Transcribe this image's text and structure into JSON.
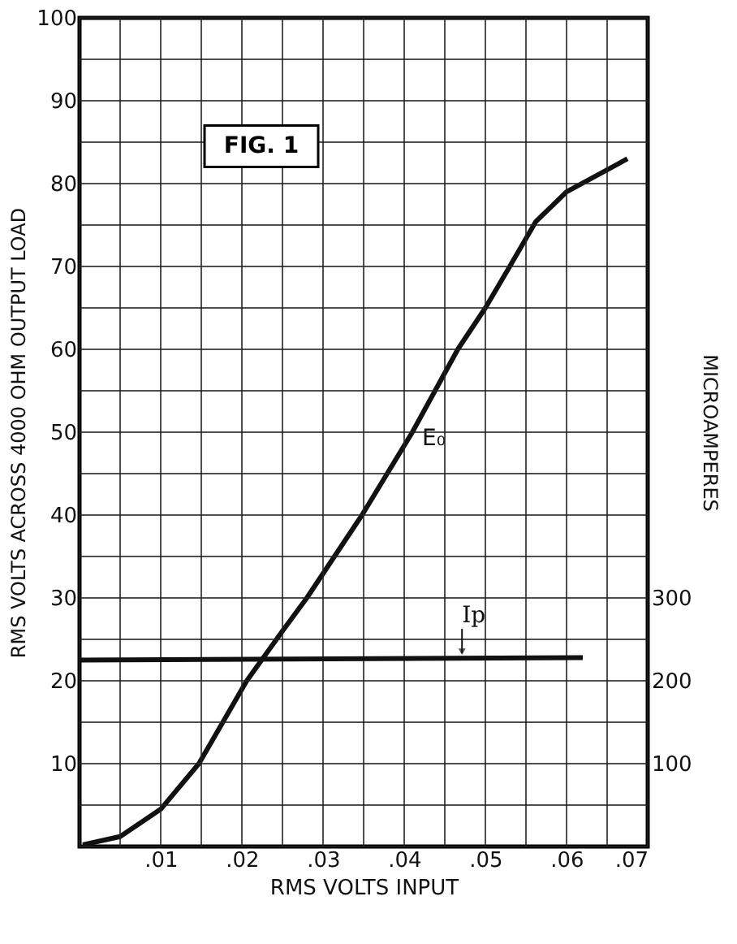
{
  "chart_data": {
    "type": "line",
    "xlabel": "RMS VOLTS INPUT",
    "ylabel": "RMS VOLTS ACROSS 4000 OHM OUTPUT LOAD",
    "y2label": "MICROAMPERES",
    "annotations": [
      "FIG. 1"
    ],
    "series": [
      {
        "name": "E₀",
        "color": "#111111",
        "x": [
          0.0004,
          0.005,
          0.01,
          0.0147,
          0.0206,
          0.025,
          0.028,
          0.0348,
          0.041,
          0.0466,
          0.05,
          0.053,
          0.0562,
          0.06,
          0.0675
        ],
        "values": [
          0.2,
          1.2,
          4.5,
          10,
          20,
          26,
          30,
          40,
          50,
          60,
          65,
          70,
          75.4,
          79,
          83
        ]
      },
      {
        "name": "Ip",
        "color": "#111111",
        "axis": "y2",
        "x": [
          0,
          0.062
        ],
        "values": [
          225,
          228
        ]
      }
    ],
    "xlim": [
      0,
      0.07
    ],
    "xticks": [
      {
        "value": 0,
        "label": null
      },
      {
        "value": 0.005,
        "label": null
      },
      {
        "value": 0.01,
        "label": ".01"
      },
      {
        "value": 0.015,
        "label": null
      },
      {
        "value": 0.02,
        "label": ".02"
      },
      {
        "value": 0.025,
        "label": null
      },
      {
        "value": 0.03,
        "label": ".03"
      },
      {
        "value": 0.035,
        "label": null
      },
      {
        "value": 0.04,
        "label": ".04"
      },
      {
        "value": 0.045,
        "label": null
      },
      {
        "value": 0.05,
        "label": ".05"
      },
      {
        "value": 0.055,
        "label": null
      },
      {
        "value": 0.06,
        "label": ".06"
      },
      {
        "value": 0.065,
        "label": null
      },
      {
        "value": 0.07,
        "label": ".07"
      }
    ],
    "ylim": [
      0,
      100
    ],
    "yticks": [
      {
        "value": 0,
        "label": null
      },
      {
        "value": 5,
        "label": null
      },
      10,
      {
        "value": 15,
        "label": null
      },
      20,
      {
        "value": 25,
        "label": null
      },
      30,
      {
        "value": 35,
        "label": null
      },
      40,
      {
        "value": 45,
        "label": null
      },
      50,
      {
        "value": 55,
        "label": null
      },
      60,
      {
        "value": 65,
        "label": null
      },
      70,
      {
        "value": 75,
        "label": null
      },
      80,
      {
        "value": 85,
        "label": null
      },
      90,
      {
        "value": 95,
        "label": null
      },
      100
    ],
    "y2lim": [
      0,
      1000
    ],
    "y2ticks": [
      100,
      200,
      300
    ],
    "grid": true,
    "legend": false,
    "marker": "none",
    "line_style": "solid"
  }
}
